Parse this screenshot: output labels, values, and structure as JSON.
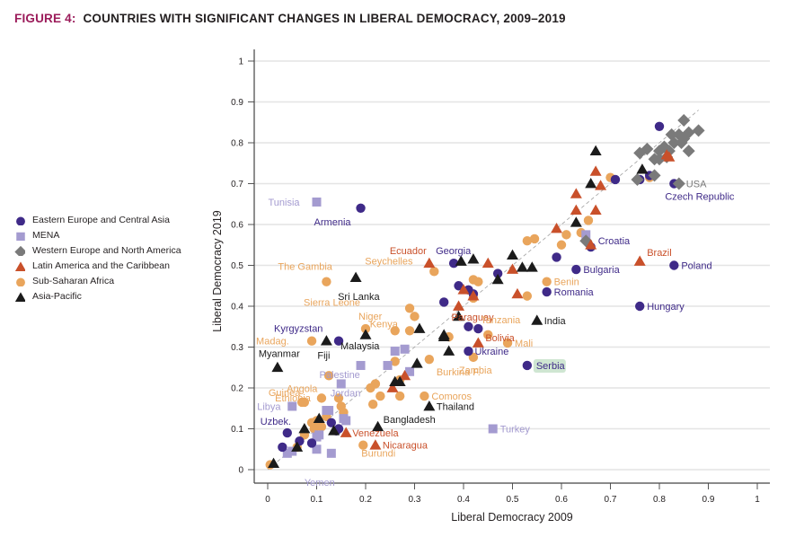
{
  "title": {
    "figure": "FIGURE 4:",
    "text": "COUNTRIES WITH SIGNIFICANT CHANGES IN LIBERAL DEMOCRACY, 2009–2019"
  },
  "colors": {
    "figure_label": "#9b1b5a",
    "eeca": "#3f2a88",
    "mena": "#a49bd0",
    "weurope": "#7a7a7a",
    "latam": "#c9502a",
    "ssa": "#e9a55c",
    "asia": "#1b1b1b",
    "serbia_highlight": "#cfe6d2"
  },
  "legend": [
    {
      "key": "eeca",
      "label": "Eastern Europe and Central Asia",
      "shape": "circle"
    },
    {
      "key": "mena",
      "label": "MENA",
      "shape": "square"
    },
    {
      "key": "weurope",
      "label": "Western Europe and North America",
      "shape": "diamond"
    },
    {
      "key": "latam",
      "label": "Latin America and the Caribbean",
      "shape": "triangle"
    },
    {
      "key": "ssa",
      "label": "Sub-Saharan Africa",
      "shape": "circle"
    },
    {
      "key": "asia",
      "label": "Asia-Pacific",
      "shape": "triangle"
    }
  ],
  "chart_data": {
    "type": "scatter",
    "title": "Countries with Significant Changes in Liberal Democracy, 2009–2019",
    "xlabel": "Liberal Democracy 2009",
    "ylabel": "Liberal Democracy 2019",
    "xlim": [
      0,
      1
    ],
    "ylim": [
      0,
      1
    ],
    "xticks": [
      "0",
      "0.1",
      "0.2",
      "0.3",
      "0.4",
      "0.5",
      "0.6",
      "0.7",
      "0.8",
      "0.9",
      "1"
    ],
    "yticks": [
      "0",
      "0.1",
      "0.2",
      "0.3",
      "0.4",
      "0.5",
      "0.6",
      "0.7",
      "0.8",
      "0.9",
      "1"
    ],
    "grid": "horizontal",
    "reference_line": "y = x (dashed)",
    "legend_position": "left",
    "series": [
      {
        "name": "Eastern Europe and Central Asia",
        "key": "eeca",
        "points": [
          {
            "x": 0.19,
            "y": 0.64,
            "label": "Armenia"
          },
          {
            "x": 0.38,
            "y": 0.505,
            "label": "Georgia"
          },
          {
            "x": 0.8,
            "y": 0.84
          },
          {
            "x": 0.83,
            "y": 0.7,
            "label": "Czech Republic"
          },
          {
            "x": 0.76,
            "y": 0.71
          },
          {
            "x": 0.78,
            "y": 0.72
          },
          {
            "x": 0.71,
            "y": 0.71
          },
          {
            "x": 0.66,
            "y": 0.545,
            "label": "Croatia"
          },
          {
            "x": 0.83,
            "y": 0.5,
            "label": "Poland"
          },
          {
            "x": 0.63,
            "y": 0.49,
            "label": "Bulgaria"
          },
          {
            "x": 0.57,
            "y": 0.435,
            "label": "Romania"
          },
          {
            "x": 0.76,
            "y": 0.4,
            "label": "Hungary"
          },
          {
            "x": 0.53,
            "y": 0.255,
            "label": "Serbia"
          },
          {
            "x": 0.41,
            "y": 0.29,
            "label": "Ukraine"
          },
          {
            "x": 0.59,
            "y": 0.52
          },
          {
            "x": 0.47,
            "y": 0.48
          },
          {
            "x": 0.36,
            "y": 0.41
          },
          {
            "x": 0.39,
            "y": 0.45
          },
          {
            "x": 0.41,
            "y": 0.44
          },
          {
            "x": 0.42,
            "y": 0.43
          },
          {
            "x": 0.41,
            "y": 0.35
          },
          {
            "x": 0.43,
            "y": 0.345
          },
          {
            "x": 0.145,
            "y": 0.315,
            "label": "Kyrgyzstan"
          },
          {
            "x": 0.04,
            "y": 0.09,
            "label": "Uzbek."
          },
          {
            "x": 0.03,
            "y": 0.055
          },
          {
            "x": 0.065,
            "y": 0.07
          },
          {
            "x": 0.09,
            "y": 0.065
          },
          {
            "x": 0.13,
            "y": 0.115
          },
          {
            "x": 0.145,
            "y": 0.1
          },
          {
            "x": 0.14,
            "y": 0.095
          }
        ]
      },
      {
        "name": "MENA",
        "key": "mena",
        "points": [
          {
            "x": 0.1,
            "y": 0.655,
            "label": "Tunisia"
          },
          {
            "x": 0.05,
            "y": 0.155,
            "label": "Libya"
          },
          {
            "x": 0.15,
            "y": 0.21,
            "label": "Jordan"
          },
          {
            "x": 0.19,
            "y": 0.255,
            "label": "Palestine"
          },
          {
            "x": 0.46,
            "y": 0.1,
            "label": "Turkey"
          },
          {
            "x": 0.13,
            "y": 0.04,
            "label": "Yemen"
          },
          {
            "x": 0.245,
            "y": 0.255
          },
          {
            "x": 0.26,
            "y": 0.29
          },
          {
            "x": 0.28,
            "y": 0.295
          },
          {
            "x": 0.29,
            "y": 0.24
          },
          {
            "x": 0.12,
            "y": 0.145
          },
          {
            "x": 0.125,
            "y": 0.145
          },
          {
            "x": 0.155,
            "y": 0.125
          },
          {
            "x": 0.16,
            "y": 0.12
          },
          {
            "x": 0.1,
            "y": 0.08
          },
          {
            "x": 0.105,
            "y": 0.085
          },
          {
            "x": 0.1,
            "y": 0.05
          },
          {
            "x": 0.04,
            "y": 0.04
          },
          {
            "x": 0.05,
            "y": 0.045
          },
          {
            "x": 0.65,
            "y": 0.575
          }
        ]
      },
      {
        "name": "Western Europe and North America",
        "key": "weurope",
        "points": [
          {
            "x": 0.84,
            "y": 0.7,
            "label": "USA"
          },
          {
            "x": 0.85,
            "y": 0.855
          },
          {
            "x": 0.825,
            "y": 0.82
          },
          {
            "x": 0.84,
            "y": 0.82
          },
          {
            "x": 0.86,
            "y": 0.825
          },
          {
            "x": 0.88,
            "y": 0.83
          },
          {
            "x": 0.85,
            "y": 0.81
          },
          {
            "x": 0.83,
            "y": 0.8
          },
          {
            "x": 0.81,
            "y": 0.79
          },
          {
            "x": 0.8,
            "y": 0.78
          },
          {
            "x": 0.82,
            "y": 0.78
          },
          {
            "x": 0.845,
            "y": 0.8
          },
          {
            "x": 0.79,
            "y": 0.76
          },
          {
            "x": 0.775,
            "y": 0.785
          },
          {
            "x": 0.76,
            "y": 0.775
          },
          {
            "x": 0.8,
            "y": 0.76
          },
          {
            "x": 0.86,
            "y": 0.78
          },
          {
            "x": 0.815,
            "y": 0.765
          },
          {
            "x": 0.755,
            "y": 0.71
          },
          {
            "x": 0.79,
            "y": 0.72
          },
          {
            "x": 0.65,
            "y": 0.56
          }
        ]
      },
      {
        "name": "Latin America and the Caribbean",
        "key": "latam",
        "points": [
          {
            "x": 0.33,
            "y": 0.505,
            "label": "Ecuador"
          },
          {
            "x": 0.76,
            "y": 0.51,
            "label": "Brazil"
          },
          {
            "x": 0.39,
            "y": 0.4,
            "label": "Paraguay"
          },
          {
            "x": 0.43,
            "y": 0.31,
            "label": "Bolivia"
          },
          {
            "x": 0.16,
            "y": 0.09,
            "label": "Venezuela"
          },
          {
            "x": 0.22,
            "y": 0.06,
            "label": "Nicaragua"
          },
          {
            "x": 0.45,
            "y": 0.505
          },
          {
            "x": 0.5,
            "y": 0.49
          },
          {
            "x": 0.51,
            "y": 0.43
          },
          {
            "x": 0.4,
            "y": 0.44
          },
          {
            "x": 0.42,
            "y": 0.425
          },
          {
            "x": 0.815,
            "y": 0.77
          },
          {
            "x": 0.82,
            "y": 0.765
          },
          {
            "x": 0.67,
            "y": 0.73
          },
          {
            "x": 0.63,
            "y": 0.675
          },
          {
            "x": 0.63,
            "y": 0.635
          },
          {
            "x": 0.68,
            "y": 0.695
          },
          {
            "x": 0.67,
            "y": 0.635
          },
          {
            "x": 0.59,
            "y": 0.59
          },
          {
            "x": 0.66,
            "y": 0.55
          },
          {
            "x": 0.255,
            "y": 0.2
          },
          {
            "x": 0.28,
            "y": 0.23
          }
        ]
      },
      {
        "name": "Sub-Saharan Africa",
        "key": "ssa",
        "points": [
          {
            "x": 0.12,
            "y": 0.46,
            "label": "The Gambia"
          },
          {
            "x": 0.34,
            "y": 0.485,
            "label": "Seychelles"
          },
          {
            "x": 0.29,
            "y": 0.395,
            "label": "Sierra Leone"
          },
          {
            "x": 0.2,
            "y": 0.345,
            "label": "Niger"
          },
          {
            "x": 0.26,
            "y": 0.34,
            "label": "Kenya"
          },
          {
            "x": 0.09,
            "y": 0.315,
            "label": "Madag."
          },
          {
            "x": 0.125,
            "y": 0.23,
            "label": "Angola"
          },
          {
            "x": 0.07,
            "y": 0.165,
            "label": "Ethiopia"
          },
          {
            "x": 0.075,
            "y": 0.165,
            "label": "Guinea"
          },
          {
            "x": 0.57,
            "y": 0.46,
            "label": "Benin"
          },
          {
            "x": 0.45,
            "y": 0.33,
            "label": "Tanzania"
          },
          {
            "x": 0.49,
            "y": 0.31,
            "label": "Mali"
          },
          {
            "x": 0.42,
            "y": 0.275,
            "label": "Zambia"
          },
          {
            "x": 0.33,
            "y": 0.27,
            "label": "Burkina F."
          },
          {
            "x": 0.32,
            "y": 0.18,
            "label": "Comoros"
          },
          {
            "x": 0.195,
            "y": 0.06,
            "label": "Burundi"
          },
          {
            "x": 0.005,
            "y": 0.012
          },
          {
            "x": 0.3,
            "y": 0.375
          },
          {
            "x": 0.29,
            "y": 0.34
          },
          {
            "x": 0.42,
            "y": 0.465
          },
          {
            "x": 0.43,
            "y": 0.46
          },
          {
            "x": 0.37,
            "y": 0.325
          },
          {
            "x": 0.42,
            "y": 0.42
          },
          {
            "x": 0.53,
            "y": 0.425
          },
          {
            "x": 0.545,
            "y": 0.565
          },
          {
            "x": 0.53,
            "y": 0.56
          },
          {
            "x": 0.6,
            "y": 0.55
          },
          {
            "x": 0.61,
            "y": 0.575
          },
          {
            "x": 0.655,
            "y": 0.61
          },
          {
            "x": 0.64,
            "y": 0.58
          },
          {
            "x": 0.7,
            "y": 0.715
          },
          {
            "x": 0.78,
            "y": 0.715
          },
          {
            "x": 0.26,
            "y": 0.265
          },
          {
            "x": 0.27,
            "y": 0.22
          },
          {
            "x": 0.22,
            "y": 0.21
          },
          {
            "x": 0.21,
            "y": 0.2
          },
          {
            "x": 0.23,
            "y": 0.18
          },
          {
            "x": 0.215,
            "y": 0.16
          },
          {
            "x": 0.27,
            "y": 0.18
          },
          {
            "x": 0.145,
            "y": 0.175
          },
          {
            "x": 0.11,
            "y": 0.175
          },
          {
            "x": 0.15,
            "y": 0.155
          },
          {
            "x": 0.155,
            "y": 0.14
          },
          {
            "x": 0.12,
            "y": 0.13
          },
          {
            "x": 0.1,
            "y": 0.12
          },
          {
            "x": 0.09,
            "y": 0.115
          },
          {
            "x": 0.11,
            "y": 0.105
          },
          {
            "x": 0.095,
            "y": 0.1
          },
          {
            "x": 0.075,
            "y": 0.085
          },
          {
            "x": 0.06,
            "y": 0.055
          }
        ]
      },
      {
        "name": "Asia-Pacific",
        "key": "asia",
        "points": [
          {
            "x": 0.18,
            "y": 0.47,
            "label": "Sri Lanka"
          },
          {
            "x": 0.55,
            "y": 0.365,
            "label": "India"
          },
          {
            "x": 0.2,
            "y": 0.33,
            "label": "Malaysia"
          },
          {
            "x": 0.12,
            "y": 0.315,
            "label": "Fiji"
          },
          {
            "x": 0.02,
            "y": 0.25,
            "label": "Myanmar"
          },
          {
            "x": 0.33,
            "y": 0.155,
            "label": "Thailand"
          },
          {
            "x": 0.225,
            "y": 0.105,
            "label": "Bangladesh"
          },
          {
            "x": 0.395,
            "y": 0.51
          },
          {
            "x": 0.42,
            "y": 0.515
          },
          {
            "x": 0.5,
            "y": 0.525
          },
          {
            "x": 0.52,
            "y": 0.495
          },
          {
            "x": 0.54,
            "y": 0.495
          },
          {
            "x": 0.47,
            "y": 0.465
          },
          {
            "x": 0.39,
            "y": 0.375
          },
          {
            "x": 0.31,
            "y": 0.345
          },
          {
            "x": 0.36,
            "y": 0.33
          },
          {
            "x": 0.36,
            "y": 0.325
          },
          {
            "x": 0.37,
            "y": 0.29
          },
          {
            "x": 0.305,
            "y": 0.26
          },
          {
            "x": 0.26,
            "y": 0.215
          },
          {
            "x": 0.27,
            "y": 0.215
          },
          {
            "x": 0.67,
            "y": 0.78
          },
          {
            "x": 0.66,
            "y": 0.7
          },
          {
            "x": 0.63,
            "y": 0.605
          },
          {
            "x": 0.765,
            "y": 0.735
          },
          {
            "x": 0.105,
            "y": 0.125
          },
          {
            "x": 0.075,
            "y": 0.1
          },
          {
            "x": 0.135,
            "y": 0.095
          },
          {
            "x": 0.06,
            "y": 0.055
          },
          {
            "x": 0.012,
            "y": 0.015
          }
        ]
      }
    ]
  }
}
